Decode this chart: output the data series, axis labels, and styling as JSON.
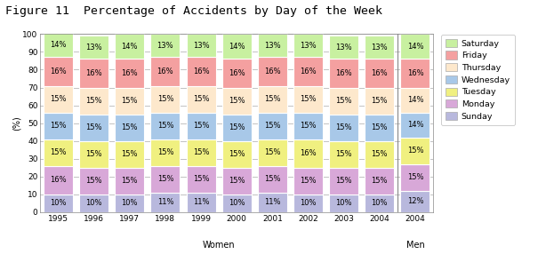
{
  "title": "Figure 11  Percentage of Accidents by Day of the Week",
  "ylabel": "(%)",
  "categories": [
    "1995",
    "1996",
    "1997",
    "1998",
    "1999",
    "2000",
    "2001",
    "2002",
    "2003",
    "2004",
    "2004"
  ],
  "group_labels": [
    "Women",
    "Men"
  ],
  "days": [
    "Sunday",
    "Monday",
    "Tuesday",
    "Wednesday",
    "Thursday",
    "Friday",
    "Saturday"
  ],
  "colors": [
    "#b8b8dd",
    "#d8a8d8",
    "#f0f080",
    "#a8c8e8",
    "#fde8cc",
    "#f4a0a0",
    "#c8f0a0"
  ],
  "data": {
    "Sunday": [
      10,
      10,
      10,
      11,
      11,
      10,
      11,
      10,
      10,
      10,
      12
    ],
    "Monday": [
      16,
      15,
      15,
      15,
      15,
      15,
      15,
      15,
      15,
      15,
      15
    ],
    "Tuesday": [
      15,
      15,
      15,
      15,
      15,
      15,
      15,
      16,
      15,
      15,
      15
    ],
    "Wednesday": [
      15,
      15,
      15,
      15,
      15,
      15,
      15,
      15,
      15,
      15,
      14
    ],
    "Thursday": [
      15,
      15,
      15,
      15,
      15,
      15,
      15,
      15,
      15,
      15,
      14
    ],
    "Friday": [
      16,
      16,
      16,
      16,
      16,
      16,
      16,
      16,
      16,
      16,
      16
    ],
    "Saturday": [
      14,
      13,
      14,
      13,
      13,
      14,
      13,
      13,
      13,
      13,
      14
    ]
  },
  "ylim": [
    0,
    100
  ],
  "yticks": [
    0,
    10,
    20,
    30,
    40,
    50,
    60,
    70,
    80,
    90,
    100
  ],
  "label_fontsize": 6.0,
  "title_fontsize": 9.5
}
